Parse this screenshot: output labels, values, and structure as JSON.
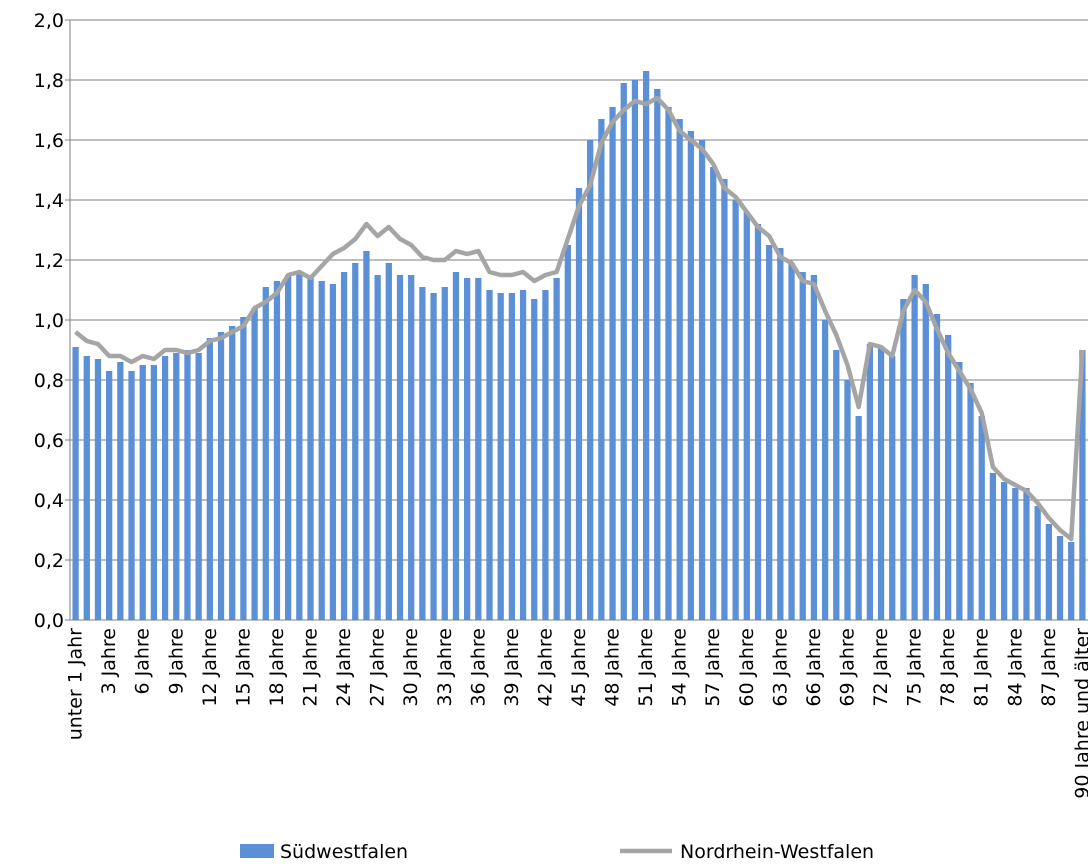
{
  "chart_data": {
    "type": "bar",
    "categories": [
      "unter 1 Jahr",
      null,
      null,
      "3 Jahre",
      null,
      null,
      "6 Jahre",
      null,
      null,
      "9 Jahre",
      null,
      null,
      "12 Jahre",
      null,
      null,
      "15 Jahre",
      null,
      null,
      "18 Jahre",
      null,
      null,
      "21 Jahre",
      null,
      null,
      "24 Jahre",
      null,
      null,
      "27 Jahre",
      null,
      null,
      "30 Jahre",
      null,
      null,
      "33 Jahre",
      null,
      null,
      "36 Jahre",
      null,
      null,
      "39 Jahre",
      null,
      null,
      "42 Jahre",
      null,
      null,
      "45 Jahre",
      null,
      null,
      "48 Jahre",
      null,
      null,
      "51 Jahre",
      null,
      null,
      "54 Jahre",
      null,
      null,
      "57 Jahre",
      null,
      null,
      "60 Jahre",
      null,
      null,
      "63 Jahre",
      null,
      null,
      "66 Jahre",
      null,
      null,
      "69 Jahre",
      null,
      null,
      "72 Jahre",
      null,
      null,
      "75 Jahre",
      null,
      null,
      "78 Jahre",
      null,
      null,
      "81 Jahre",
      null,
      null,
      "84 Jahre",
      null,
      null,
      "87 Jahre",
      null,
      null,
      "90 Jahre und älter"
    ],
    "series": [
      {
        "name": "Südwestfalen",
        "type": "bar",
        "color": "#5b8fd6",
        "values": [
          0.91,
          0.88,
          0.87,
          0.83,
          0.86,
          0.83,
          0.85,
          0.85,
          0.88,
          0.89,
          0.9,
          0.89,
          0.94,
          0.96,
          0.98,
          1.01,
          1.04,
          1.11,
          1.13,
          1.15,
          1.16,
          1.15,
          1.13,
          1.12,
          1.16,
          1.19,
          1.23,
          1.15,
          1.19,
          1.15,
          1.15,
          1.11,
          1.09,
          1.11,
          1.16,
          1.14,
          1.14,
          1.1,
          1.09,
          1.09,
          1.1,
          1.07,
          1.1,
          1.14,
          1.25,
          1.44,
          1.6,
          1.67,
          1.71,
          1.79,
          1.8,
          1.83,
          1.77,
          1.71,
          1.67,
          1.63,
          1.6,
          1.51,
          1.47,
          1.4,
          1.36,
          1.32,
          1.25,
          1.24,
          1.19,
          1.16,
          1.15,
          1.0,
          0.9,
          0.8,
          0.68,
          0.92,
          0.91,
          0.88,
          1.07,
          1.15,
          1.12,
          1.02,
          0.95,
          0.86,
          0.79,
          0.68,
          0.49,
          0.46,
          0.44,
          0.44,
          0.38,
          0.32,
          0.28,
          0.26,
          0.9
        ]
      },
      {
        "name": "Nordrhein-Westfalen",
        "type": "line",
        "color": "#a5a5a5",
        "values": [
          0.96,
          0.93,
          0.92,
          0.88,
          0.88,
          0.86,
          0.88,
          0.87,
          0.9,
          0.9,
          0.89,
          0.9,
          0.93,
          0.94,
          0.96,
          0.98,
          1.04,
          1.06,
          1.09,
          1.15,
          1.16,
          1.14,
          1.18,
          1.22,
          1.24,
          1.27,
          1.32,
          1.28,
          1.31,
          1.27,
          1.25,
          1.21,
          1.2,
          1.2,
          1.23,
          1.22,
          1.23,
          1.16,
          1.15,
          1.15,
          1.16,
          1.13,
          1.15,
          1.16,
          1.27,
          1.38,
          1.45,
          1.59,
          1.66,
          1.7,
          1.73,
          1.72,
          1.74,
          1.7,
          1.63,
          1.6,
          1.57,
          1.52,
          1.44,
          1.41,
          1.36,
          1.31,
          1.28,
          1.21,
          1.19,
          1.13,
          1.12,
          1.03,
          0.95,
          0.85,
          0.71,
          0.92,
          0.91,
          0.88,
          1.03,
          1.1,
          1.06,
          0.97,
          0.89,
          0.83,
          0.77,
          0.69,
          0.51,
          0.47,
          0.45,
          0.43,
          0.39,
          0.34,
          0.3,
          0.27,
          0.9
        ]
      }
    ],
    "ylim": [
      0,
      2
    ],
    "yticks": [
      {
        "value": 0,
        "label": "0,0"
      },
      {
        "value": 0.2,
        "label": "0,2"
      },
      {
        "value": 0.4,
        "label": "0,4"
      },
      {
        "value": 0.6,
        "label": "0,6"
      },
      {
        "value": 0.8,
        "label": "0,8"
      },
      {
        "value": 1,
        "label": "1,0"
      },
      {
        "value": 1.2,
        "label": "1,2"
      },
      {
        "value": 1.4,
        "label": "1,4"
      },
      {
        "value": 1.6,
        "label": "1,6"
      },
      {
        "value": 1.8,
        "label": "1,8"
      },
      {
        "value": 2,
        "label": "2,0"
      }
    ],
    "grid": true,
    "legend": "bottom"
  }
}
